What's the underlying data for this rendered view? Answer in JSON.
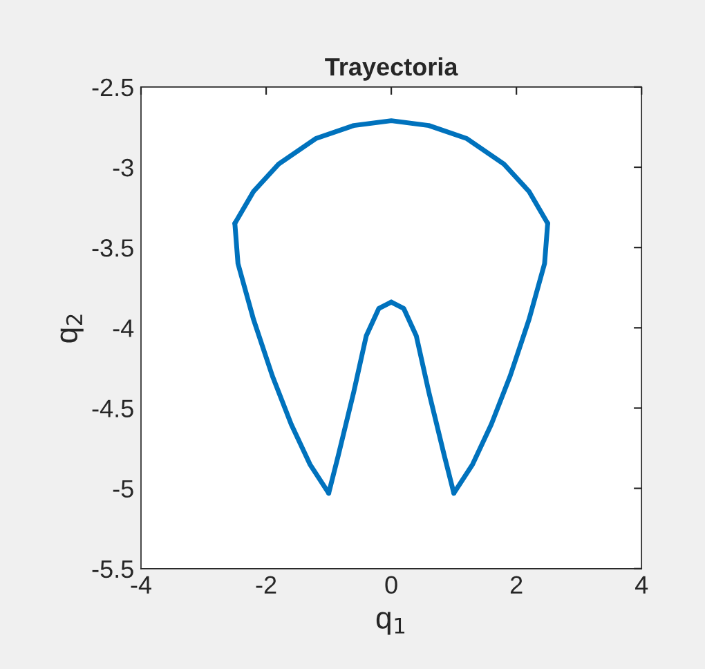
{
  "chart_data": {
    "type": "line",
    "title": "Trayectoria",
    "xlabel": "q$_{1}$",
    "ylabel": "q$_{2}$",
    "series": [
      {
        "color": "#0072bd",
        "x": [
          -2.5,
          -2.2,
          -1.8,
          -1.2,
          -0.6,
          0,
          0.6,
          1.2,
          1.8,
          2.2,
          2.5
        ],
        "values": [
          -3.35,
          -3.15,
          -2.98,
          -2.82,
          -2.74,
          -2.71,
          -2.74,
          -2.82,
          -2.98,
          -3.15,
          -3.35
        ]
      },
      {
        "color": "#0072bd",
        "x": [
          -2.5,
          -2.45,
          -2.2,
          -1.9,
          -1.6,
          -1.3,
          -1.0
        ],
        "values": [
          -3.35,
          -3.6,
          -3.95,
          -4.3,
          -4.6,
          -4.85,
          -5.03
        ]
      },
      {
        "color": "#0072bd",
        "x": [
          -1.0,
          -0.85,
          -0.6,
          -0.4,
          -0.2,
          0
        ],
        "values": [
          -5.03,
          -4.8,
          -4.4,
          -4.05,
          -3.88,
          -3.84
        ]
      },
      {
        "color": "#0072bd",
        "x": [
          0,
          0.2,
          0.4,
          0.6,
          0.85,
          1.0
        ],
        "values": [
          -3.84,
          -3.88,
          -4.05,
          -4.4,
          -4.8,
          -5.03
        ]
      },
      {
        "color": "#0072bd",
        "x": [
          1.0,
          1.3,
          1.6,
          1.9,
          2.2,
          2.45,
          2.5
        ],
        "values": [
          -5.03,
          -4.85,
          -4.6,
          -4.3,
          -3.95,
          -3.6,
          -3.35
        ]
      }
    ],
    "xlim": [
      -4,
      4
    ],
    "xticks": [
      -4,
      -2,
      0,
      2,
      4
    ],
    "ylim": [
      -5.5,
      -2.5
    ],
    "yticks": [
      -5.5,
      -5,
      -4.5,
      -4,
      -3.5,
      -3,
      -2.5
    ],
    "grid": false,
    "legend": false,
    "marker": "none",
    "line_style": "solid"
  }
}
